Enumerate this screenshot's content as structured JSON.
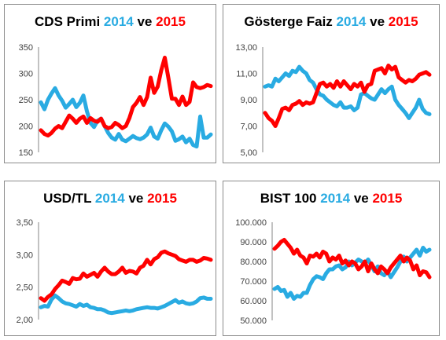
{
  "colors": {
    "y2014": "#29abe2",
    "y2015": "#ff0000",
    "axis": "#868686",
    "text": "#000000"
  },
  "chart_data": [
    {
      "type": "line",
      "title": {
        "prefix": "CDS Primi",
        "y1": "2014",
        "sep": "ve",
        "y2": "2015"
      },
      "ylim": [
        150,
        350
      ],
      "yticks": [
        "350",
        "300",
        "250",
        "200",
        "150"
      ],
      "ytick_values": [
        350,
        300,
        250,
        200,
        150
      ],
      "grid": false,
      "series": [
        {
          "name": "2014",
          "color": "#29abe2",
          "values": [
            245,
            232,
            250,
            262,
            272,
            258,
            248,
            235,
            242,
            250,
            236,
            244,
            258,
            228,
            206,
            198,
            210,
            214,
            200,
            187,
            178,
            174,
            185,
            174,
            171,
            176,
            181,
            177,
            175,
            178,
            184,
            197,
            180,
            176,
            192,
            205,
            199,
            190,
            172,
            175,
            180,
            169,
            176,
            164,
            161,
            218,
            178,
            178,
            184
          ]
        },
        {
          "name": "2015",
          "color": "#ff0000",
          "values": [
            192,
            185,
            182,
            187,
            195,
            200,
            196,
            208,
            220,
            214,
            206,
            214,
            218,
            206,
            215,
            210,
            208,
            214,
            200,
            196,
            198,
            206,
            202,
            196,
            200,
            215,
            236,
            244,
            255,
            240,
            255,
            292,
            263,
            275,
            306,
            330,
            292,
            252,
            252,
            240,
            256,
            240,
            246,
            283,
            274,
            272,
            274,
            278,
            276
          ]
        }
      ]
    },
    {
      "type": "line",
      "title": {
        "prefix": "Gösterge Faiz",
        "y1": "2014",
        "sep": "ve",
        "y2": "2015"
      },
      "ylim": [
        5,
        13
      ],
      "yticks": [
        "13,00",
        "11,00",
        "9,00",
        "7,00",
        "5,00"
      ],
      "ytick_values": [
        13,
        11,
        9,
        7,
        5
      ],
      "grid": false,
      "series": [
        {
          "name": "2014",
          "color": "#29abe2",
          "values": [
            10.0,
            10.1,
            10.0,
            10.6,
            10.4,
            10.7,
            11.0,
            10.8,
            11.2,
            11.1,
            11.5,
            11.2,
            11.0,
            10.5,
            10.3,
            9.8,
            9.4,
            9.3,
            9.0,
            8.8,
            8.6,
            8.5,
            8.8,
            8.4,
            8.4,
            8.5,
            8.2,
            8.4,
            9.4,
            9.5,
            9.3,
            9.1,
            9.0,
            9.4,
            9.8,
            9.5,
            9.8,
            10.0,
            9.0,
            8.6,
            8.3,
            8.0,
            7.6,
            8.0,
            8.4,
            9.0,
            8.3,
            8.0,
            7.9
          ]
        },
        {
          "name": "2015",
          "color": "#ff0000",
          "values": [
            8.0,
            7.6,
            7.4,
            7.0,
            7.6,
            8.3,
            8.4,
            8.2,
            8.6,
            8.7,
            8.9,
            8.6,
            8.8,
            8.7,
            8.8,
            9.5,
            10.2,
            10.3,
            10.0,
            10.2,
            9.9,
            10.4,
            10.0,
            10.4,
            10.1,
            9.8,
            10.2,
            10.0,
            10.3,
            9.6,
            10.1,
            10.2,
            11.2,
            11.3,
            11.4,
            11.0,
            11.6,
            11.3,
            11.5,
            10.7,
            10.5,
            10.3,
            10.5,
            10.4,
            10.6,
            10.9,
            11.0,
            11.1,
            10.9
          ]
        }
      ]
    },
    {
      "type": "line",
      "title": {
        "prefix": "USD/TL",
        "y1": "2014",
        "sep": "ve",
        "y2": "2015"
      },
      "ylim": [
        2.0,
        3.5
      ],
      "yticks": [
        "3,50",
        "3,00",
        "2,50",
        "2,00"
      ],
      "ytick_values": [
        3.5,
        3.0,
        2.5,
        2.0
      ],
      "grid": false,
      "series": [
        {
          "name": "2014",
          "color": "#29abe2",
          "values": [
            2.19,
            2.21,
            2.2,
            2.31,
            2.37,
            2.33,
            2.28,
            2.25,
            2.24,
            2.22,
            2.2,
            2.24,
            2.21,
            2.23,
            2.19,
            2.18,
            2.16,
            2.16,
            2.14,
            2.11,
            2.1,
            2.11,
            2.12,
            2.13,
            2.14,
            2.13,
            2.14,
            2.16,
            2.17,
            2.18,
            2.19,
            2.18,
            2.18,
            2.17,
            2.19,
            2.21,
            2.24,
            2.27,
            2.3,
            2.26,
            2.28,
            2.25,
            2.24,
            2.25,
            2.28,
            2.33,
            2.34,
            2.32,
            2.32
          ]
        },
        {
          "name": "2015",
          "color": "#ff0000",
          "values": [
            2.33,
            2.29,
            2.35,
            2.39,
            2.47,
            2.53,
            2.6,
            2.58,
            2.55,
            2.64,
            2.62,
            2.63,
            2.71,
            2.66,
            2.69,
            2.72,
            2.66,
            2.74,
            2.8,
            2.74,
            2.7,
            2.7,
            2.74,
            2.8,
            2.72,
            2.75,
            2.74,
            2.71,
            2.8,
            2.83,
            2.92,
            2.85,
            2.93,
            2.96,
            3.03,
            3.05,
            3.02,
            3.0,
            2.98,
            2.93,
            2.91,
            2.89,
            2.92,
            2.92,
            2.89,
            2.91,
            2.95,
            2.94,
            2.92
          ]
        }
      ]
    },
    {
      "type": "line",
      "title": {
        "prefix": "BIST 100",
        "y1": "2014",
        "sep": "ve",
        "y2": "2015"
      },
      "ylim": [
        50000,
        100000
      ],
      "yticks": [
        "100.000",
        "90.000",
        "80.000",
        "70.000",
        "60.000",
        "50.000"
      ],
      "ytick_values": [
        100000,
        90000,
        80000,
        70000,
        60000,
        50000
      ],
      "grid": false,
      "series": [
        {
          "name": "2014",
          "color": "#29abe2",
          "values": [
            66000,
            67000,
            65000,
            65500,
            62000,
            64000,
            61000,
            62500,
            62000,
            64000,
            64000,
            68000,
            71000,
            72500,
            72000,
            71000,
            74000,
            76000,
            76000,
            77500,
            78000,
            76000,
            77000,
            80000,
            78000,
            79500,
            81000,
            80000,
            79000,
            81000,
            78000,
            75000,
            77500,
            74000,
            73000,
            75000,
            72000,
            74500,
            77000,
            80000,
            82500,
            80000,
            82000,
            84000,
            86000,
            83000,
            87000,
            85000,
            86000
          ]
        },
        {
          "name": "2015",
          "color": "#ff0000",
          "values": [
            86500,
            88000,
            90000,
            91000,
            89000,
            87000,
            84000,
            86000,
            83000,
            82000,
            79000,
            83000,
            82500,
            84000,
            82000,
            85000,
            84000,
            80000,
            82000,
            81000,
            83000,
            79000,
            80500,
            78000,
            80000,
            79000,
            76000,
            77500,
            80000,
            75000,
            79000,
            76000,
            74000,
            77500,
            76000,
            74000,
            77000,
            79000,
            81000,
            83000,
            80000,
            82000,
            80500,
            76000,
            78000,
            73000,
            75000,
            74500,
            72000
          ]
        }
      ]
    }
  ]
}
